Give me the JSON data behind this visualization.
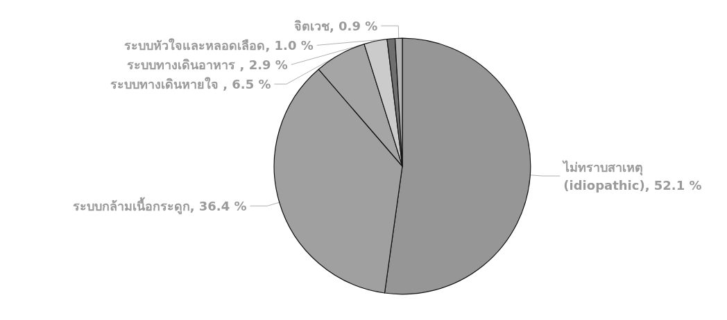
{
  "chart_data": {
    "type": "pie",
    "categories": [
      "ไม่ทราบสาเหตุ\n(idiopathic)",
      "ระบบกล้ามเนื้อกระดูก",
      "ระบบทางเดินหายใจ ",
      "ระบบทางเดินอาหาร ",
      "ระบบหัวใจและหลอดเลือด",
      "จิตเวช"
    ],
    "values": [
      52.1,
      36.4,
      6.5,
      2.9,
      1.0,
      0.9
    ],
    "value_labels": [
      "52.1 %",
      "36.4 %",
      "6.5 %",
      "2.9 %",
      "1.0 %",
      "0.9 %"
    ],
    "colors": [
      "#969696",
      "#a0a0a0",
      "#a5a5a5",
      "#cbcbcb",
      "#6f6f6f",
      "#b4b4b4"
    ],
    "legend": false
  }
}
